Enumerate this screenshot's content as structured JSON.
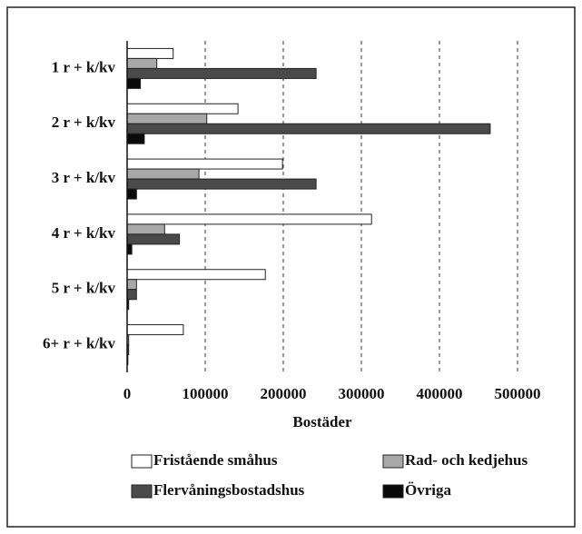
{
  "chart_data": {
    "type": "bar",
    "orientation": "horizontal",
    "categories": [
      "1 r + k/kv",
      "2 r + k/kv",
      "3 r + k/kv",
      "4 r + k/kv",
      "5 r + k/kv",
      "6+ r + k/kv"
    ],
    "series": [
      {
        "name": "Fristående småhus",
        "color": "#ffffff",
        "values": [
          59000,
          142000,
          199000,
          313000,
          177000,
          72000
        ]
      },
      {
        "name": "Rad- och kedjehus",
        "color": "#a8a8a8",
        "values": [
          38000,
          102000,
          92000,
          48000,
          12000,
          2000
        ]
      },
      {
        "name": "Flervåningsbostadshus",
        "color": "#4a4a4a",
        "values": [
          242000,
          465000,
          242000,
          67000,
          12000,
          2000
        ]
      },
      {
        "name": "Övriga",
        "color": "#0a0a0a",
        "values": [
          17000,
          22000,
          12000,
          6000,
          2000,
          1000
        ]
      }
    ],
    "xlabel": "Bostäder",
    "xlim": [
      0,
      500000
    ],
    "xticks": [
      0,
      100000,
      200000,
      300000,
      400000,
      500000
    ],
    "grid": true,
    "legend": "bottom"
  }
}
